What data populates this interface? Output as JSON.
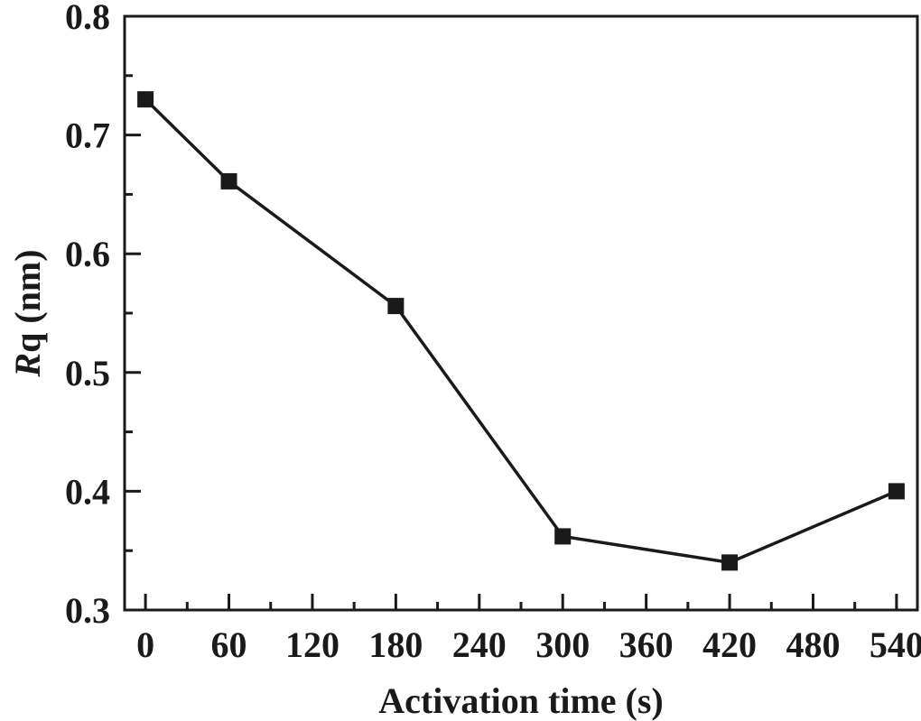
{
  "chart_data": {
    "type": "line",
    "title": "",
    "xlabel": "Activation time (s)",
    "ylabel": {
      "italic": "R",
      "rest": "q (nm)"
    },
    "xlim": [
      -15,
      555
    ],
    "ylim": [
      0.3,
      0.8
    ],
    "xticks": [
      0,
      60,
      120,
      180,
      240,
      300,
      360,
      420,
      480,
      540
    ],
    "yticks": [
      0.3,
      0.4,
      0.5,
      0.6,
      0.7,
      0.8
    ],
    "ytick_labels": [
      "0.3",
      "0.4",
      "0.5",
      "0.6",
      "0.7",
      "0.8"
    ],
    "grid": false,
    "series": [
      {
        "marker": "square",
        "color": "#1a1a1a",
        "x": [
          0,
          60,
          180,
          300,
          420,
          540
        ],
        "y": [
          0.73,
          0.661,
          0.556,
          0.362,
          0.34,
          0.4
        ]
      }
    ]
  }
}
